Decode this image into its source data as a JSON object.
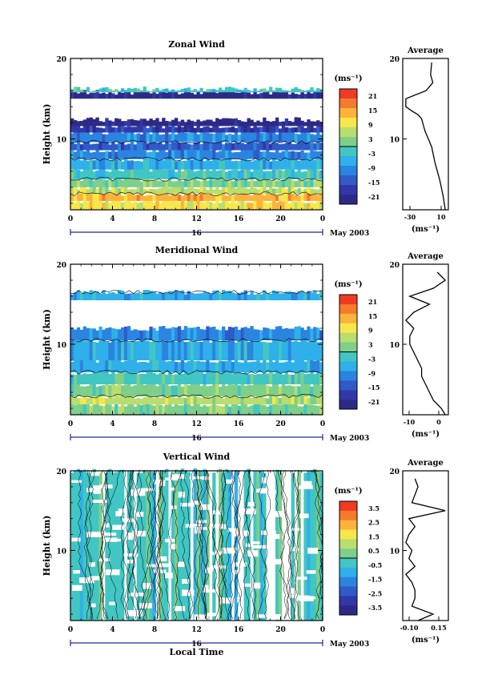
{
  "chart_data": [
    {
      "type": "heatmap",
      "title": "Zonal Wind",
      "ylabel": "Height (km)",
      "xlabel": "",
      "xticks": [
        "0",
        "4",
        "8",
        "12",
        "16",
        "20",
        "0"
      ],
      "yticks": [
        "10",
        "20"
      ],
      "day_label": "16",
      "date_label": "May 2003",
      "colorbar": {
        "unit": "(ms⁻¹)",
        "labels": [
          "21",
          "15",
          "9",
          "3",
          "-3",
          "-9",
          "-15",
          "-21"
        ],
        "colors": [
          "#ef3b24",
          "#f57a2b",
          "#fbb33a",
          "#f7e74a",
          "#b9dd6e",
          "#7dcf8a",
          "#41c6c3",
          "#2fb0ea",
          "#2b84e0",
          "#2f5bc8",
          "#3238a8",
          "#2c2a86"
        ]
      },
      "profile": {
        "title": "Average",
        "xlabel": "(ms⁻¹)",
        "xticks": [
          "-30",
          "10",
          "10"
        ],
        "yticks": [
          "10",
          "20"
        ],
        "heights": [
          1.2,
          3,
          5,
          7,
          9,
          10,
          11,
          12,
          12.5,
          13,
          13.5,
          14,
          15,
          16,
          17,
          18,
          19.5
        ],
        "values": [
          9,
          7,
          4,
          0,
          -3,
          -6,
          -9,
          -11,
          -12,
          -15,
          -21,
          -26,
          -26,
          -8,
          -2,
          -4,
          -3
        ]
      },
      "bands": [
        {
          "h0": 1.2,
          "h1": 2.3,
          "c": 3
        },
        {
          "h0": 2.3,
          "h1": 3.2,
          "c": 2
        },
        {
          "h0": 3.2,
          "h1": 4,
          "c": 4
        },
        {
          "h0": 4,
          "h1": 5,
          "c": 5
        },
        {
          "h0": 5,
          "h1": 6.2,
          "c": 6
        },
        {
          "h0": 6.2,
          "h1": 7.5,
          "c": 7
        },
        {
          "h0": 7.5,
          "h1": 8.6,
          "c": 8
        },
        {
          "h0": 8.6,
          "h1": 9.6,
          "c": 9
        },
        {
          "h0": 9.6,
          "h1": 10.8,
          "c": 8
        },
        {
          "h0": 10.8,
          "h1": 11.6,
          "c": 10
        },
        {
          "h0": 11.6,
          "h1": 12.4,
          "c": 11
        },
        {
          "h0": 15,
          "h1": 15.8,
          "c": 11
        },
        {
          "h0": 15.8,
          "h1": 16.2,
          "c": 6
        }
      ]
    },
    {
      "type": "heatmap",
      "title": "Meridional Wind",
      "ylabel": "Height (km)",
      "xlabel": "",
      "xticks": [
        "0",
        "4",
        "8",
        "12",
        "16",
        "20",
        "0"
      ],
      "yticks": [
        "10",
        "20"
      ],
      "day_label": "16",
      "date_label": "May 2003",
      "colorbar": {
        "unit": "(ms⁻¹)",
        "labels": [
          "21",
          "15",
          "9",
          "3",
          "-3",
          "-9",
          "-15",
          "-21"
        ],
        "colors": [
          "#ef3b24",
          "#f57a2b",
          "#fbb33a",
          "#f7e74a",
          "#b9dd6e",
          "#7dcf8a",
          "#41c6c3",
          "#2fb0ea",
          "#2b84e0",
          "#2f5bc8",
          "#3238a8",
          "#2c2a86"
        ]
      },
      "profile": {
        "title": "Average",
        "xlabel": "(ms⁻¹)",
        "xticks": [
          "-10",
          "0"
        ],
        "yticks": [
          "10",
          "20"
        ],
        "heights": [
          1.2,
          2,
          3,
          4,
          5,
          6,
          7,
          8,
          9,
          10,
          11,
          12,
          13,
          14,
          15,
          16,
          17,
          18,
          19
        ],
        "values": [
          4,
          3,
          1,
          0,
          -1,
          -2,
          -2,
          -3,
          -4,
          -5,
          -5,
          -4,
          -6,
          -4,
          0,
          -5,
          1,
          4,
          2
        ]
      },
      "bands": [
        {
          "h0": 1.2,
          "h1": 2.5,
          "c": 5
        },
        {
          "h0": 2.5,
          "h1": 3.5,
          "c": 4
        },
        {
          "h0": 3.5,
          "h1": 5,
          "c": 5
        },
        {
          "h0": 5,
          "h1": 6.5,
          "c": 6
        },
        {
          "h0": 6.5,
          "h1": 8,
          "c": 7
        },
        {
          "h0": 8,
          "h1": 10.5,
          "c": 7
        },
        {
          "h0": 10.5,
          "h1": 12,
          "c": 8
        },
        {
          "h0": 15.5,
          "h1": 16.5,
          "c": 7
        }
      ]
    },
    {
      "type": "heatmap",
      "title": "Vertical Wind",
      "ylabel": "Height (km)",
      "xlabel": "Local Time",
      "xticks": [
        "0",
        "4",
        "8",
        "12",
        "16",
        "20",
        "0"
      ],
      "yticks": [
        "10",
        "20"
      ],
      "day_label": "16",
      "date_label": "May 2003",
      "colorbar": {
        "unit": "(ms⁻¹)",
        "labels": [
          "3.5",
          "2.5",
          "1.5",
          "0.5",
          "-0.5",
          "-1.5",
          "-2.5",
          "-3.5"
        ],
        "colors": [
          "#ef3b24",
          "#f57a2b",
          "#fbb33a",
          "#f7e74a",
          "#b9dd6e",
          "#7dcf8a",
          "#41c6c3",
          "#2fb0ea",
          "#2b84e0",
          "#2f5bc8",
          "#3238a8",
          "#2c2a86"
        ]
      },
      "profile": {
        "title": "Average",
        "xlabel": "(ms⁻¹)",
        "xticks": [
          "-0.10",
          "0.15"
        ],
        "yticks": [
          "10",
          "20"
        ],
        "heights": [
          1.2,
          2,
          3,
          4,
          5,
          6,
          7,
          8,
          9,
          10,
          11,
          12,
          13,
          14,
          15,
          16,
          17,
          18,
          19
        ],
        "values": [
          0.03,
          0.08,
          0.01,
          0.02,
          0.02,
          0.01,
          -0.01,
          0.02,
          0.0,
          0.01,
          -0.01,
          0.0,
          0.02,
          0.0,
          0.12,
          0.01,
          0.02,
          0.03,
          0.02
        ]
      },
      "bands": [
        {
          "h0": 1.2,
          "h1": 20,
          "c": 6
        }
      ]
    }
  ]
}
